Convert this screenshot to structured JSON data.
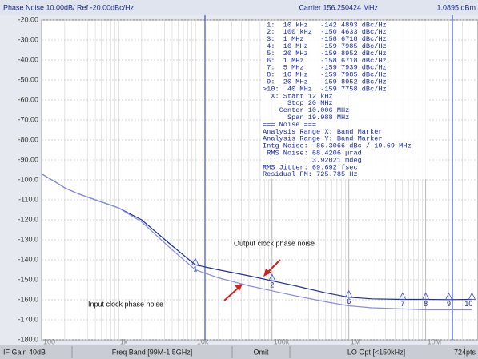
{
  "chart_data": {
    "type": "line",
    "title": "Phase Noise 10.00dB/ Ref -20.00dBc/Hz",
    "carrier": "Carrier 156.250424 MHz",
    "power": "1.0895 dBm",
    "log_x": true,
    "grid": true,
    "xlim": [
      100,
      48000000
    ],
    "ylim": [
      -180,
      -20
    ],
    "xticks": [
      {
        "value": 100,
        "label": "100"
      },
      {
        "value": 1000,
        "label": "1k"
      },
      {
        "value": 10000,
        "label": "10k"
      },
      {
        "value": 100000,
        "label": "100k"
      },
      {
        "value": 1000000,
        "label": "1M"
      },
      {
        "value": 10000000,
        "label": "10M"
      }
    ],
    "xminor": [
      200,
      300,
      400,
      500,
      600,
      700,
      800,
      900,
      2000,
      3000,
      4000,
      5000,
      6000,
      7000,
      8000,
      9000,
      20000,
      30000,
      40000,
      50000,
      60000,
      70000,
      80000,
      90000,
      200000,
      300000,
      400000,
      500000,
      600000,
      700000,
      800000,
      900000,
      2000000,
      3000000,
      4000000,
      5000000,
      6000000,
      7000000,
      8000000,
      9000000,
      20000000,
      30000000,
      40000000
    ],
    "yticks": [
      {
        "value": -20,
        "label": "-20.00"
      },
      {
        "value": -30,
        "label": "-30.00"
      },
      {
        "value": -40,
        "label": "-40.00"
      },
      {
        "value": -50,
        "label": "-50.00"
      },
      {
        "value": -60,
        "label": "-60.00"
      },
      {
        "value": -70,
        "label": "-70.00"
      },
      {
        "value": -80,
        "label": "-80.00"
      },
      {
        "value": -90,
        "label": "-90.00"
      },
      {
        "value": -100,
        "label": "-100.0"
      },
      {
        "value": -110,
        "label": "-110.0"
      },
      {
        "value": -120,
        "label": "-120.0"
      },
      {
        "value": -130,
        "label": "-130.0"
      },
      {
        "value": -140,
        "label": "-140.0"
      },
      {
        "value": -150,
        "label": "-150.0"
      },
      {
        "value": -160,
        "label": "-160.0"
      },
      {
        "value": -170,
        "label": "-170.0"
      },
      {
        "value": -180,
        "label": "-180.0"
      }
    ],
    "x": [
      100,
      150,
      200,
      300,
      500,
      1000,
      2000,
      5000,
      10000,
      20000,
      50000,
      100000,
      200000,
      500000,
      1000000,
      2000000,
      5000000,
      10000000,
      20000000,
      40000000
    ],
    "series": [
      {
        "name": "Output clock phase noise",
        "color": "#1f2f9a",
        "values": [
          -97,
          -101,
          -104,
          -107,
          -110,
          -114,
          -120,
          -133,
          -142.5,
          -145,
          -148,
          -150.5,
          -153,
          -156.5,
          -158.7,
          -159.5,
          -159.8,
          -159.8,
          -159.9,
          -159.8
        ]
      },
      {
        "name": "Input clock phase noise",
        "color": "#8a8fe0",
        "values": [
          -97,
          -101,
          -104,
          -107,
          -110,
          -114,
          -121,
          -135,
          -145,
          -149,
          -153,
          -155.5,
          -158,
          -161,
          -163,
          -164,
          -164.5,
          -165,
          -165,
          -165
        ]
      }
    ],
    "markers": [
      {
        "label": "1",
        "x": 10000,
        "y": -142.4893
      },
      {
        "label": "2",
        "x": 100000,
        "y": -150.4633
      },
      {
        "label": "6",
        "x": 1000000,
        "y": -158.6718
      },
      {
        "label": "7",
        "x": 5000000,
        "y": -159.7939
      },
      {
        "label": "8",
        "x": 10000000,
        "y": -159.7985
      },
      {
        "label": "9",
        "x": 20000000,
        "y": -159.8952
      },
      {
        "label": "10",
        "x": 40000000,
        "y": -159.7758
      }
    ],
    "marker_table": [
      " 1:  10 kHz   -142.4893 dBc/Hz",
      " 2:  100 kHz  -150.4633 dBc/Hz",
      " 3:  1 MHz    -158.6718 dBc/Hz",
      " 4:  10 MHz   -159.7985 dBc/Hz",
      " 5:  20 MHz   -159.8952 dBc/Hz",
      " 6:  1 MHz    -158.6718 dBc/Hz",
      " 7:  5 MHz    -159.7939 dBc/Hz",
      " 8:  10 MHz   -159.7985 dBc/Hz",
      " 9:  20 MHz   -159.8952 dBc/Hz",
      ">10:  40 MHz  -159.7758 dBc/Hz",
      "  X: Start 12 kHz",
      "      Stop 20 MHz",
      "    Center 10.006 MHz",
      "      Span 19.988 MHz",
      "=== Noise ===",
      "Analysis Range X: Band Marker",
      "Analysis Range Y: Band Marker",
      "Intg Noise: -86.3066 dBc / 19.69 MHz",
      " RMS Noise: 68.4206 µrad",
      "            3.92021 mdeg",
      "RMS Jitter: 69.692 fsec",
      "Residual FM: 725.785 Hz"
    ],
    "status": [
      "IF Gain 40dB",
      "Freq Band [99M-1.5GHz]",
      "Omit",
      "LO Opt [<150kHz]",
      "724pts"
    ]
  }
}
